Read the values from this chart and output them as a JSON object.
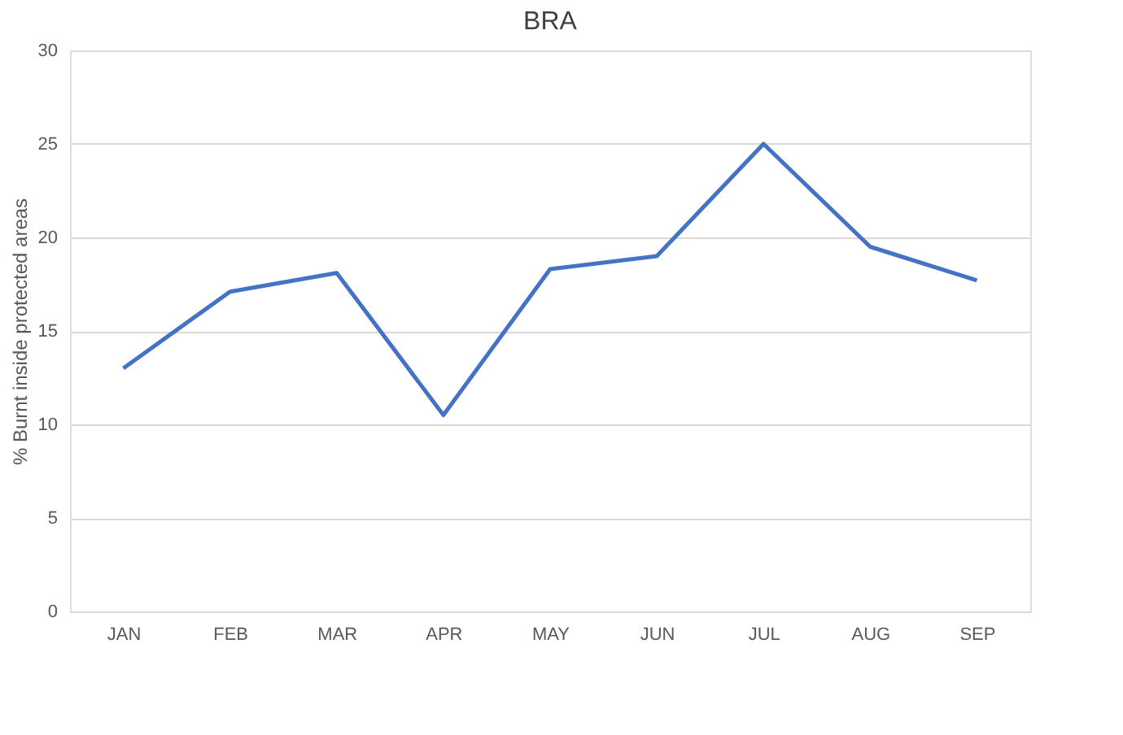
{
  "chart_data": {
    "type": "line",
    "title": "BRA",
    "ylabel": "% Burnt inside protected areas",
    "categories": [
      "JAN",
      "FEB",
      "MAR",
      "APR",
      "MAY",
      "JUN",
      "JUL",
      "AUG",
      "SEP"
    ],
    "series": [
      {
        "color": "#4472c4",
        "values": [
          13,
          17.1,
          18.1,
          10.5,
          18.3,
          19.0,
          25.0,
          19.5,
          17.7
        ]
      }
    ],
    "ylim": [
      0,
      30
    ],
    "yticks": [
      0,
      5,
      10,
      15,
      20,
      25,
      30
    ],
    "grid": "y",
    "legend": false,
    "marker": "none",
    "line_style": "solid"
  }
}
